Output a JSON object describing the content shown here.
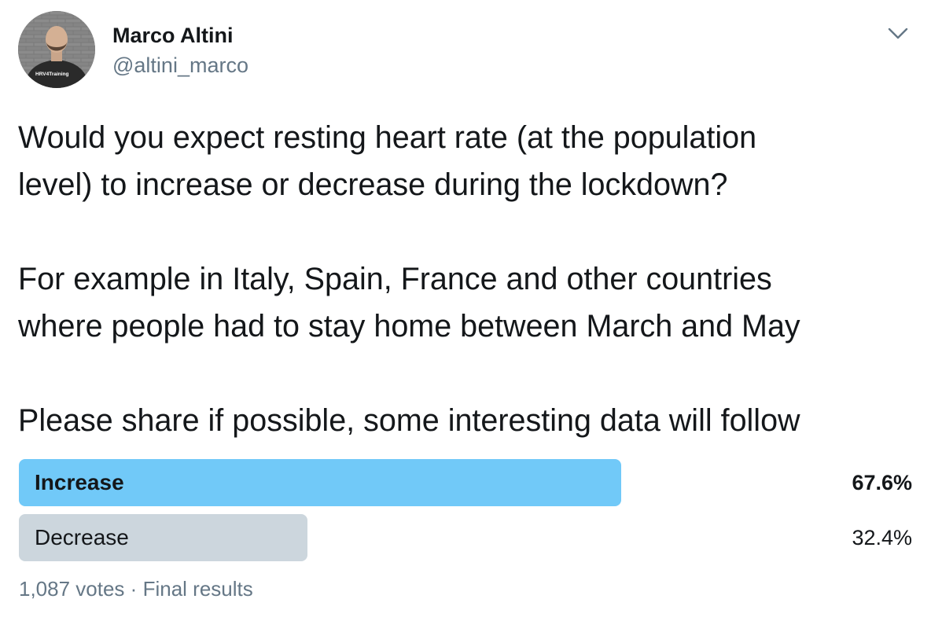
{
  "author": {
    "display_name": "Marco Altini",
    "handle": "@altini_marco",
    "avatar_icon": "profile-photo",
    "shirt_text": "HRV4Training"
  },
  "menu": {
    "icon": "chevron-down-icon"
  },
  "tweet": {
    "paragraphs": [
      {
        "lines": [
          "Would you expect resting heart rate (at the population",
          "level) to increase or decrease during the lockdown?"
        ]
      },
      {
        "lines": [
          "For example in Italy, Spain, France and other countries",
          "where people had to stay home between March and May"
        ]
      },
      {
        "lines": [
          "Please share if possible, some interesting data will follow"
        ]
      }
    ]
  },
  "poll": {
    "options": [
      {
        "label": "Increase",
        "percent_text": "67.6%",
        "percent": 67.6,
        "winner": true,
        "color": "#71c9f8"
      },
      {
        "label": "Decrease",
        "percent_text": "32.4%",
        "percent": 32.4,
        "winner": false,
        "color": "#ccd6dd"
      }
    ],
    "votes": "1,087 votes",
    "separator": "·",
    "status": "Final results"
  }
}
